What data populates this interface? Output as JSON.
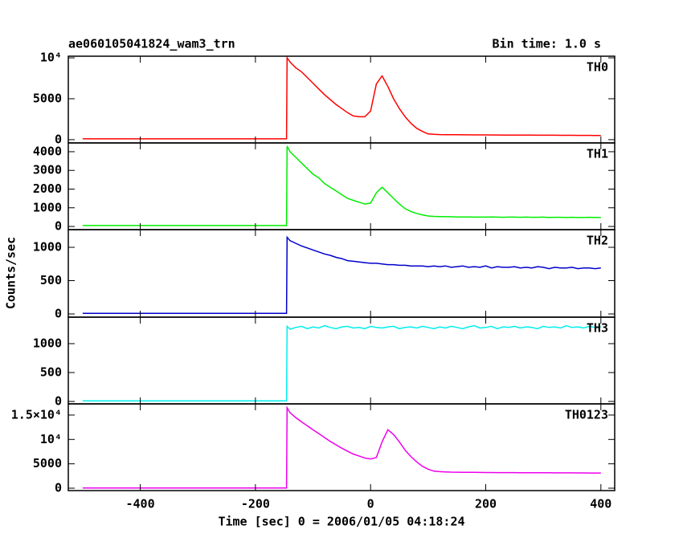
{
  "title": "ae060105041824_wam3_trn",
  "subtitle": "Bin time: 1.0 s",
  "y_label": "Counts/sec",
  "x_label": "Time [sec] 0 = 2006/01/05 04:18:24",
  "chart_data": [
    {
      "type": "line",
      "xlim": [
        -525,
        424
      ],
      "xticks": [
        -400,
        -200,
        0,
        200,
        400
      ],
      "ylim": [
        -400,
        10200
      ],
      "yticks": [
        0,
        5000,
        {
          "value": 10000,
          "label": "10⁴"
        }
      ],
      "x": [
        -500,
        -146,
        -145,
        -140,
        -130,
        -120,
        -110,
        -100,
        -90,
        -80,
        -70,
        -60,
        -50,
        -40,
        -30,
        -20,
        -10,
        0,
        10,
        20,
        30,
        40,
        50,
        60,
        70,
        80,
        90,
        100,
        110,
        120,
        130,
        140,
        150,
        160,
        170,
        180,
        190,
        200,
        210,
        220,
        230,
        240,
        250,
        260,
        270,
        280,
        290,
        300,
        310,
        320,
        330,
        340,
        350,
        360,
        370,
        380,
        390,
        400
      ],
      "series": [
        {
          "name": "TH0",
          "color": "#ff0000",
          "values": [
            100,
            100,
            10000,
            9500,
            8800,
            8300,
            7600,
            6900,
            6200,
            5500,
            4900,
            4300,
            3800,
            3300,
            2900,
            2800,
            2800,
            3500,
            6800,
            7800,
            6500,
            5000,
            3800,
            2800,
            2000,
            1400,
            1000,
            700,
            650,
            620,
            610,
            600,
            600,
            590,
            590,
            580,
            580,
            580,
            570,
            570,
            560,
            560,
            560,
            550,
            550,
            550,
            540,
            540,
            540,
            540,
            530,
            530,
            530,
            520,
            520,
            520,
            510,
            510
          ]
        }
      ]
    },
    {
      "type": "line",
      "xlim": [
        -525,
        424
      ],
      "xticks": [
        -400,
        -200,
        0,
        200,
        400
      ],
      "ylim": [
        -170,
        4470
      ],
      "yticks": [
        0,
        1000,
        2000,
        3000,
        4000
      ],
      "x": [
        -500,
        -146,
        -145,
        -140,
        -130,
        -120,
        -110,
        -100,
        -90,
        -80,
        -70,
        -60,
        -50,
        -40,
        -30,
        -20,
        -10,
        0,
        10,
        20,
        30,
        40,
        50,
        60,
        70,
        80,
        90,
        100,
        110,
        120,
        130,
        140,
        150,
        160,
        170,
        180,
        190,
        200,
        210,
        220,
        230,
        240,
        250,
        260,
        270,
        280,
        290,
        300,
        310,
        320,
        330,
        340,
        350,
        360,
        370,
        380,
        390,
        400
      ],
      "series": [
        {
          "name": "TH1",
          "color": "#00ee00",
          "values": [
            50,
            50,
            4300,
            4000,
            3700,
            3400,
            3100,
            2800,
            2600,
            2300,
            2100,
            1900,
            1700,
            1500,
            1400,
            1300,
            1200,
            1250,
            1800,
            2100,
            1800,
            1500,
            1200,
            950,
            800,
            700,
            620,
            560,
            540,
            530,
            520,
            520,
            510,
            510,
            510,
            500,
            500,
            500,
            510,
            500,
            490,
            500,
            500,
            490,
            500,
            490,
            490,
            500,
            480,
            490,
            490,
            480,
            490,
            480,
            480,
            490,
            480,
            480
          ]
        }
      ]
    },
    {
      "type": "line",
      "xlim": [
        -525,
        424
      ],
      "xticks": [
        -400,
        -200,
        0,
        200,
        400
      ],
      "ylim": [
        -48,
        1265
      ],
      "yticks": [
        0,
        500,
        1000
      ],
      "x": [
        -500,
        -146,
        -145,
        -140,
        -130,
        -120,
        -110,
        -100,
        -90,
        -80,
        -70,
        -60,
        -50,
        -40,
        -30,
        -20,
        -10,
        0,
        10,
        20,
        30,
        40,
        50,
        60,
        70,
        80,
        90,
        100,
        110,
        120,
        130,
        140,
        150,
        160,
        170,
        180,
        190,
        200,
        210,
        220,
        230,
        240,
        250,
        260,
        270,
        280,
        290,
        300,
        310,
        320,
        330,
        340,
        350,
        360,
        370,
        380,
        390,
        400
      ],
      "series": [
        {
          "name": "TH2",
          "color": "#0000cc",
          "values": [
            10,
            10,
            1150,
            1100,
            1060,
            1020,
            990,
            960,
            930,
            900,
            880,
            850,
            830,
            800,
            790,
            780,
            770,
            760,
            760,
            750,
            740,
            740,
            730,
            730,
            720,
            720,
            720,
            710,
            720,
            710,
            720,
            700,
            710,
            720,
            700,
            710,
            700,
            720,
            690,
            710,
            700,
            700,
            710,
            690,
            700,
            690,
            710,
            700,
            680,
            700,
            690,
            690,
            700,
            680,
            690,
            690,
            680,
            690
          ]
        }
      ]
    },
    {
      "type": "line",
      "xlim": [
        -525,
        424
      ],
      "xticks": [
        -400,
        -200,
        0,
        200,
        400
      ],
      "ylim": [
        -42,
        1458
      ],
      "yticks": [
        0,
        500,
        1000
      ],
      "x": [
        -500,
        -146,
        -145,
        -140,
        -130,
        -120,
        -110,
        -100,
        -90,
        -80,
        -70,
        -60,
        -50,
        -40,
        -30,
        -20,
        -10,
        0,
        10,
        20,
        30,
        40,
        50,
        60,
        70,
        80,
        90,
        100,
        110,
        120,
        130,
        140,
        150,
        160,
        170,
        180,
        190,
        200,
        210,
        220,
        230,
        240,
        250,
        260,
        270,
        280,
        290,
        300,
        310,
        320,
        330,
        340,
        350,
        360,
        370,
        380,
        390,
        400
      ],
      "series": [
        {
          "name": "TH3",
          "color": "#00eeee",
          "values": [
            10,
            10,
            1300,
            1250,
            1280,
            1300,
            1260,
            1290,
            1270,
            1310,
            1280,
            1260,
            1290,
            1300,
            1270,
            1280,
            1260,
            1300,
            1280,
            1270,
            1290,
            1300,
            1260,
            1280,
            1290,
            1270,
            1300,
            1280,
            1260,
            1290,
            1270,
            1300,
            1280,
            1260,
            1290,
            1310,
            1270,
            1280,
            1300,
            1260,
            1290,
            1280,
            1300,
            1270,
            1290,
            1280,
            1260,
            1300,
            1280,
            1290,
            1270,
            1310,
            1280,
            1290,
            1270,
            1300,
            1280,
            1290
          ]
        }
      ]
    },
    {
      "type": "line",
      "xlim": [
        -525,
        424
      ],
      "xticks": [
        -400,
        -200,
        0,
        200,
        400
      ],
      "ylim": [
        -492,
        17295
      ],
      "yticks": [
        0,
        5000,
        {
          "value": 10000,
          "label": "10⁴"
        },
        {
          "value": 15000,
          "label": "1.5×10⁴"
        }
      ],
      "x": [
        -500,
        -146,
        -145,
        -140,
        -130,
        -120,
        -110,
        -100,
        -90,
        -80,
        -70,
        -60,
        -50,
        -40,
        -30,
        -20,
        -10,
        0,
        10,
        20,
        30,
        40,
        50,
        60,
        70,
        80,
        90,
        100,
        110,
        120,
        130,
        140,
        150,
        160,
        170,
        180,
        190,
        200,
        210,
        220,
        230,
        240,
        250,
        260,
        270,
        280,
        290,
        300,
        310,
        320,
        330,
        340,
        350,
        360,
        370,
        380,
        390,
        400
      ],
      "series": [
        {
          "name": "TH0123",
          "color": "#ee00ee",
          "values": [
            50,
            50,
            16500,
            15500,
            14500,
            13600,
            12800,
            12000,
            11200,
            10400,
            9600,
            8900,
            8200,
            7600,
            7000,
            6600,
            6200,
            6000,
            6300,
            9500,
            12000,
            11000,
            9500,
            7800,
            6500,
            5400,
            4500,
            3900,
            3500,
            3400,
            3350,
            3300,
            3280,
            3260,
            3250,
            3240,
            3230,
            3220,
            3210,
            3200,
            3200,
            3190,
            3190,
            3180,
            3180,
            3170,
            3170,
            3160,
            3160,
            3150,
            3150,
            3140,
            3140,
            3130,
            3130,
            3120,
            3120,
            3110
          ]
        }
      ]
    }
  ]
}
